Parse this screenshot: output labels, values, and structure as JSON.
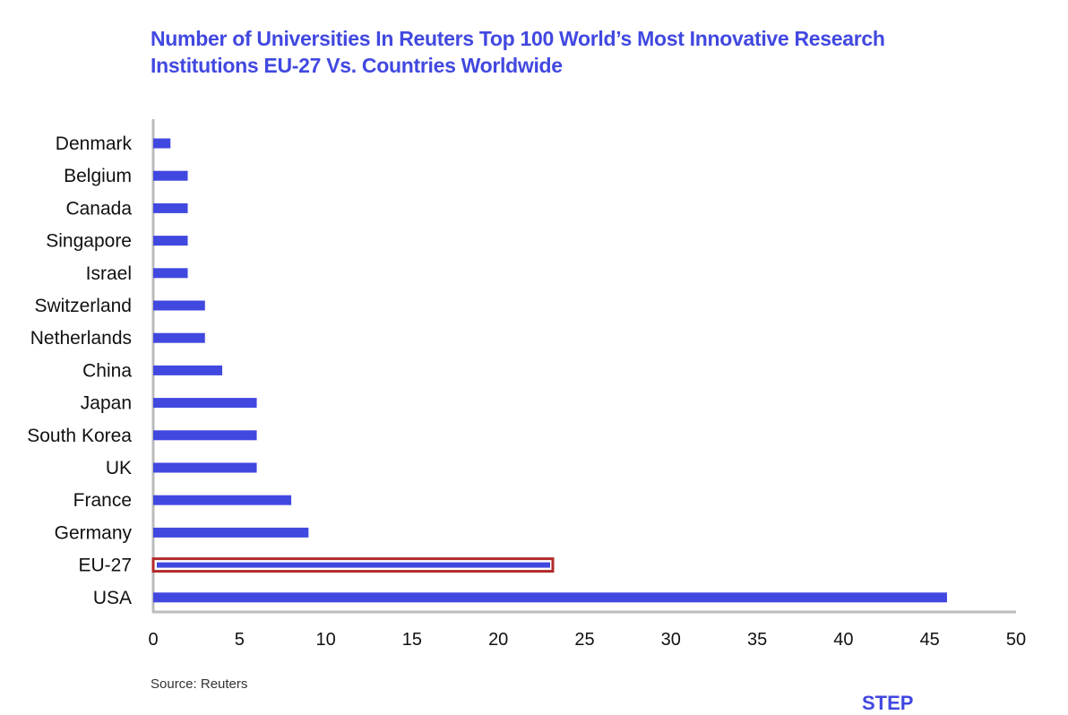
{
  "title_lines": [
    "Number of Universities In Reuters Top 100 World’s Most Innovative Research",
    "Institutions EU-27 Vs. Countries Worldwide"
  ],
  "source": "Source: Reuters",
  "logo": "STEP",
  "colors": {
    "bar": "#4148e0",
    "highlight_border": "#b22a2a",
    "axis": "#bbbbbb",
    "title": "#4148e0"
  },
  "chart_data": {
    "type": "bar",
    "orientation": "horizontal",
    "title": "Number of Universities In Reuters Top 100 World’s Most Innovative Research Institutions EU-27 Vs. Countries Worldwide",
    "categories": [
      "Denmark",
      "Belgium",
      "Canada",
      "Singapore",
      "Israel",
      "Switzerland",
      "Netherlands",
      "China",
      "Japan",
      "South Korea",
      "UK",
      "France",
      "Germany",
      "EU-27",
      "USA"
    ],
    "values": [
      1,
      2,
      2,
      2,
      2,
      3,
      3,
      4,
      6,
      6,
      6,
      8,
      9,
      23,
      46
    ],
    "highlight": "EU-27",
    "xlim": [
      0,
      50
    ],
    "xticks": [
      0,
      5,
      10,
      15,
      20,
      25,
      30,
      35,
      40,
      45,
      50
    ],
    "xlabel": "",
    "ylabel": "",
    "grid": false
  }
}
